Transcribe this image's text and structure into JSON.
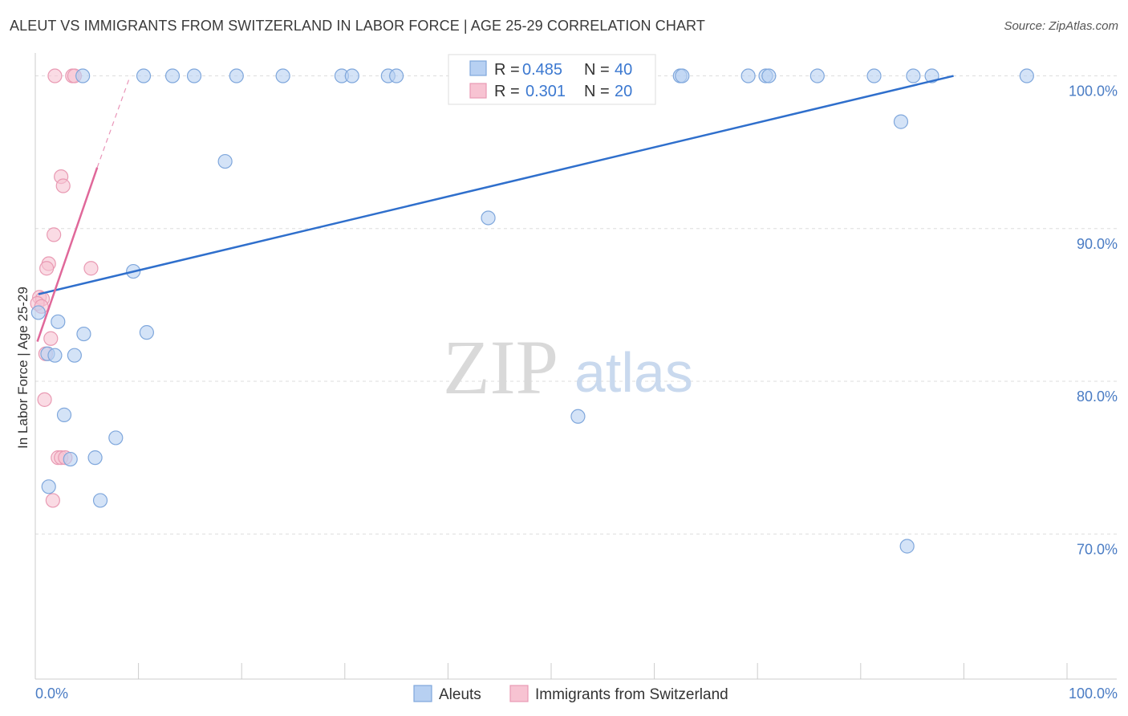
{
  "title": "ALEUT VS IMMIGRANTS FROM SWITZERLAND IN LABOR FORCE | AGE 25-29 CORRELATION CHART",
  "source": "Source: ZipAtlas.com",
  "watermark": {
    "zip": "ZIP",
    "atlas": "atlas"
  },
  "colors": {
    "aleut_fill": "#b7d0f2",
    "aleut_stroke": "#7fa7dc",
    "aleut_line": "#2f6fcc",
    "swiss_fill": "#f7c3d2",
    "swiss_stroke": "#e99ab3",
    "swiss_line": "#e0689a",
    "grid": "#dddddd",
    "axis_text": "#4a7cc4"
  },
  "legend": {
    "rows": [
      {
        "r_label": "R = ",
        "r_value": "0.485",
        "n_label": "N = ",
        "n_value": "40"
      },
      {
        "r_label": "R = ",
        "r_value": "0.301",
        "n_label": "N = ",
        "n_value": "20"
      }
    ]
  },
  "chart_data": {
    "type": "scatter",
    "title": "ALEUT VS IMMIGRANTS FROM SWITZERLAND IN LABOR FORCE | AGE 25-29 CORRELATION CHART",
    "xlabel": "",
    "ylabel": "In Labor Force | Age 25-29",
    "xlim": [
      0,
      100
    ],
    "ylim": [
      60.5,
      101.5
    ],
    "x_tick_labels": [
      "0.0%",
      "100.0%"
    ],
    "y_ticks": [
      70,
      80,
      90,
      100
    ],
    "y_tick_labels": [
      "70.0%",
      "80.0%",
      "90.0%",
      "100.0%"
    ],
    "grid": true,
    "legend_placement": "top-center",
    "series": [
      {
        "name": "Aleuts",
        "points": [
          [
            4.6,
            100
          ],
          [
            10.5,
            100
          ],
          [
            13.3,
            100
          ],
          [
            15.4,
            100
          ],
          [
            19.5,
            100
          ],
          [
            24.0,
            100
          ],
          [
            29.7,
            100
          ],
          [
            30.7,
            100
          ],
          [
            34.2,
            100
          ],
          [
            35.0,
            100
          ],
          [
            57.8,
            100
          ],
          [
            62.5,
            100
          ],
          [
            62.7,
            100
          ],
          [
            69.1,
            100
          ],
          [
            70.8,
            100
          ],
          [
            71.1,
            100
          ],
          [
            75.8,
            100
          ],
          [
            81.3,
            100
          ],
          [
            85.1,
            100
          ],
          [
            86.9,
            100
          ],
          [
            96.1,
            100
          ],
          [
            83.9,
            97.0
          ],
          [
            18.4,
            94.4
          ],
          [
            43.9,
            90.7
          ],
          [
            9.5,
            87.2
          ],
          [
            0.3,
            84.5
          ],
          [
            2.2,
            83.9
          ],
          [
            4.7,
            83.1
          ],
          [
            10.8,
            83.2
          ],
          [
            1.2,
            81.8
          ],
          [
            1.9,
            81.7
          ],
          [
            3.8,
            81.7
          ],
          [
            2.8,
            77.8
          ],
          [
            52.6,
            77.7
          ],
          [
            7.8,
            76.3
          ],
          [
            3.4,
            74.9
          ],
          [
            5.8,
            75.0
          ],
          [
            1.3,
            73.1
          ],
          [
            6.3,
            72.2
          ],
          [
            84.5,
            69.2
          ]
        ],
        "trend": {
          "x": [
            0.3,
            89.0
          ],
          "y": [
            85.7,
            100.0
          ]
        }
      },
      {
        "name": "Immigrants from Switzerland",
        "points": [
          [
            1.9,
            100
          ],
          [
            3.6,
            100
          ],
          [
            3.8,
            100
          ],
          [
            2.5,
            93.4
          ],
          [
            2.7,
            92.8
          ],
          [
            1.8,
            89.6
          ],
          [
            1.3,
            87.7
          ],
          [
            1.1,
            87.4
          ],
          [
            5.4,
            87.4
          ],
          [
            0.4,
            85.5
          ],
          [
            0.7,
            85.4
          ],
          [
            0.2,
            85.1
          ],
          [
            0.6,
            84.9
          ],
          [
            1.5,
            82.8
          ],
          [
            1.0,
            81.8
          ],
          [
            0.9,
            78.8
          ],
          [
            2.2,
            75.0
          ],
          [
            2.5,
            75.0
          ],
          [
            2.9,
            75.0
          ],
          [
            1.7,
            72.2
          ]
        ],
        "trend": {
          "x": [
            0.2,
            6.0
          ],
          "y": [
            82.6,
            94.0
          ]
        },
        "trend_extension": {
          "x": [
            6.0,
            9.2
          ],
          "y": [
            94.0,
            100.0
          ]
        }
      }
    ]
  }
}
